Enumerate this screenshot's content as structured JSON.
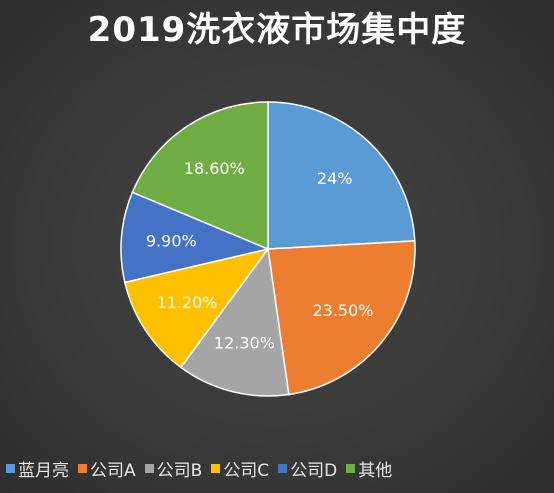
{
  "chart_data": {
    "type": "pie",
    "title": "2019洗衣液市场集中度",
    "categories": [
      "蓝月亮",
      "公司A",
      "公司B",
      "公司C",
      "公司D",
      "其他"
    ],
    "values": [
      24,
      23.5,
      12.3,
      11.2,
      9.9,
      18.6
    ],
    "data_labels": [
      "24%",
      "23.50%",
      "12.30%",
      "11.20%",
      "9.90%",
      "18.60%"
    ],
    "colors": [
      "#5b9bd5",
      "#ed7d31",
      "#a5a5a5",
      "#ffc000",
      "#4472c4",
      "#70ad47"
    ],
    "legend_position": "bottom",
    "start": "12 o'clock",
    "direction": "clockwise"
  }
}
